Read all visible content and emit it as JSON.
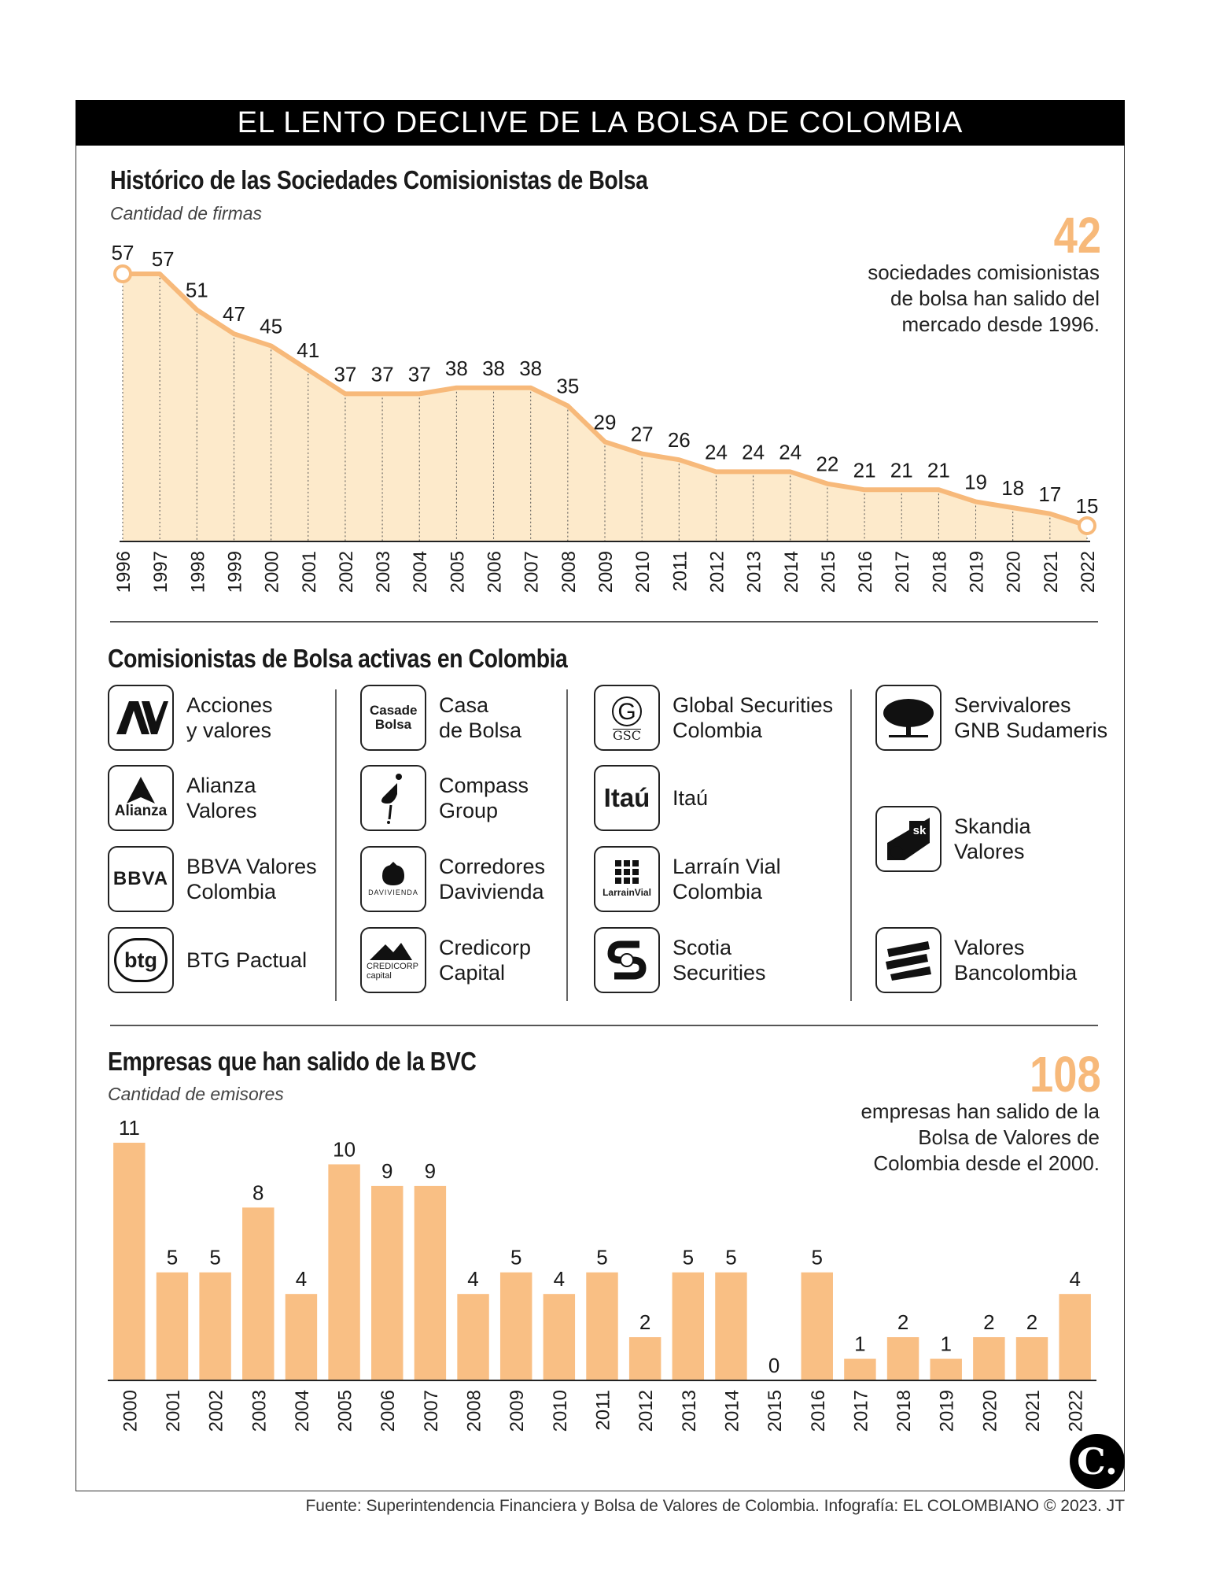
{
  "header": {
    "title": "EL LENTO DECLIVE DE LA BOLSA DE COLOMBIA"
  },
  "section1": {
    "title": "Histórico de las Sociedades Comisionistas de Bolsa",
    "subtitle": "Cantidad de firmas",
    "highlight_number": "42",
    "highlight_text": "sociedades comisionistas\nde bolsa han salido del\nmercado desde 1996."
  },
  "section2": {
    "title": "Comisionistas de Bolsa activas en Colombia",
    "brokers": [
      {
        "name": "Acciones\ny valores",
        "logo": "AV",
        "icon": "acciones-valores-logo"
      },
      {
        "name": "Alianza\nValores",
        "logo": "Alianza",
        "icon": "alianza-logo"
      },
      {
        "name": "BBVA Valores\nColombia",
        "logo": "BBVA",
        "icon": "bbva-logo"
      },
      {
        "name": "BTG Pactual",
        "logo": "btg",
        "icon": "btg-logo"
      },
      {
        "name": "Casa\nde Bolsa",
        "logo": "Casade Bolsa",
        "icon": "casa-de-bolsa-logo"
      },
      {
        "name": "Compass\n Group",
        "logo": "",
        "icon": "compass-logo"
      },
      {
        "name": "Corredores\nDavivienda",
        "logo": "DAVIVIENDA",
        "icon": "davivienda-logo"
      },
      {
        "name": "Credicorp\nCapital",
        "logo": "CREDICORP capital",
        "icon": "credicorp-logo"
      },
      {
        "name": "Global Securities\nColombia",
        "logo": "GSC",
        "icon": "gsc-logo"
      },
      {
        "name": "Itaú",
        "logo": "Itaú",
        "icon": "itau-logo"
      },
      {
        "name": "Larraín Vial\nColombia",
        "logo": "LarrainVial",
        "icon": "larrainvial-logo"
      },
      {
        "name": "Scotia\nSecurities",
        "logo": "",
        "icon": "scotia-logo"
      },
      {
        "name": "Servivalores\nGNB Sudameris",
        "logo": "",
        "icon": "tree-logo"
      },
      {
        "name": "Skandia\nValores",
        "logo": "sk",
        "icon": "skandia-logo"
      },
      {
        "name": "Valores\nBancolombia",
        "logo": "",
        "icon": "bancolombia-logo"
      }
    ]
  },
  "section3": {
    "title": "Empresas que han salido de la BVC",
    "subtitle": "Cantidad de emisores",
    "highlight_number": "108",
    "highlight_text": "empresas han salido de la\nBolsa de Valores de\nColombia desde el 2000."
  },
  "footer": {
    "source": "Fuente: Superintendencia Financiera y Bolsa de Valores de Colombia. Infografía: EL COLOMBIANO © 2023. JT"
  },
  "brand": {
    "mark": "C."
  },
  "colors": {
    "accent": "#f7b97a",
    "area_fill": "#fdeacb",
    "bar": "#f9bf84",
    "line": "#f7b97a"
  },
  "chart_data": [
    {
      "type": "area",
      "title": "Histórico de las Sociedades Comisionistas de Bolsa",
      "ylabel": "Cantidad de firmas",
      "x": [
        "1996",
        "1997",
        "1998",
        "1999",
        "2000",
        "2001",
        "2002",
        "2003",
        "2004",
        "2005",
        "2006",
        "2007",
        "2008",
        "2009",
        "2010",
        "2011",
        "2012",
        "2013",
        "2014",
        "2015",
        "2016",
        "2017",
        "2018",
        "2019",
        "2020",
        "2021",
        "2022"
      ],
      "values": [
        57,
        57,
        51,
        47,
        45,
        41,
        37,
        37,
        37,
        38,
        38,
        38,
        35,
        29,
        27,
        26,
        24,
        24,
        24,
        22,
        21,
        21,
        21,
        19,
        18,
        17,
        15
      ],
      "ylim": [
        0,
        57
      ],
      "grid": false
    },
    {
      "type": "bar",
      "title": "Empresas que han salido de la BVC",
      "ylabel": "Cantidad de emisores",
      "categories": [
        "2000",
        "2001",
        "2002",
        "2003",
        "2004",
        "2005",
        "2006",
        "2007",
        "2008",
        "2009",
        "2010",
        "2011",
        "2012",
        "2013",
        "2014",
        "2015",
        "2016",
        "2017",
        "2018",
        "2019",
        "2020",
        "2021",
        "2022"
      ],
      "values": [
        11,
        5,
        5,
        8,
        4,
        10,
        9,
        9,
        4,
        5,
        4,
        5,
        2,
        5,
        5,
        0,
        5,
        1,
        2,
        1,
        2,
        2,
        4
      ],
      "ylim": [
        0,
        11
      ],
      "grid": false
    }
  ]
}
